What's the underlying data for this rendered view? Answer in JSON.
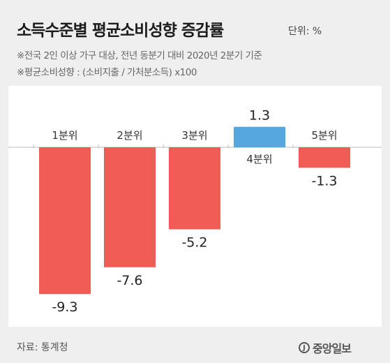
{
  "header": {
    "title": "소득수준별 평균소비성향 증감률",
    "unit": "단위: %",
    "note1": "※전국 2인 이상 가구 대상, 전년 동분기 대비 2020년 2분기 기준",
    "note2": "※평균소비성향 : (소비지출 / 가처분소득) x100"
  },
  "footer": {
    "source": "자료: 통계청",
    "logo_mark": "J",
    "logo_text": "중앙일보"
  },
  "colors": {
    "negative": "#f05b55",
    "positive": "#55a8df",
    "axis": "#bbbbbb"
  },
  "chart_data": {
    "type": "bar",
    "categories": [
      "1분위",
      "2분위",
      "3분위",
      "4분위",
      "5분위"
    ],
    "values": [
      -9.3,
      -7.6,
      -5.2,
      1.3,
      -1.3
    ],
    "value_labels": [
      "-9.3",
      "-7.6",
      "-5.2",
      "1.3",
      "-1.3"
    ],
    "ylim": [
      -10,
      2
    ],
    "grid": false,
    "legend": "none"
  }
}
